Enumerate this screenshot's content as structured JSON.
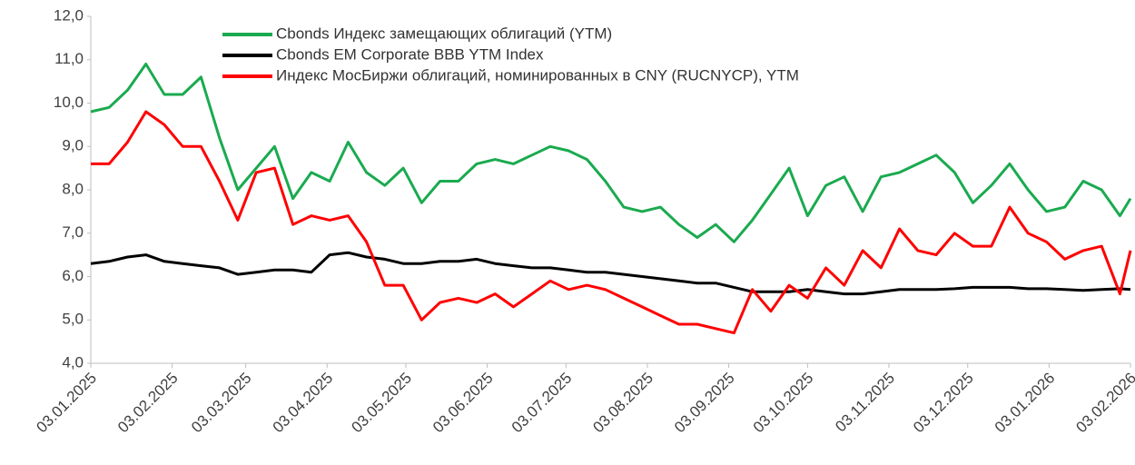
{
  "chart_data": {
    "type": "line",
    "x": [
      "03.01.2025",
      "10.01.2025",
      "17.01.2025",
      "24.01.2025",
      "31.01.2025",
      "07.02.2025",
      "14.02.2025",
      "21.02.2025",
      "28.02.2025",
      "07.03.2025",
      "14.03.2025",
      "21.03.2025",
      "28.03.2025",
      "04.04.2025",
      "11.04.2025",
      "18.04.2025",
      "25.04.2025",
      "02.05.2025",
      "09.05.2025",
      "16.05.2025",
      "23.05.2025",
      "30.05.2025",
      "06.06.2025",
      "13.06.2025",
      "20.06.2025",
      "27.06.2025",
      "04.07.2025",
      "11.07.2025",
      "18.07.2025",
      "25.07.2025",
      "01.08.2025",
      "08.08.2025",
      "15.08.2025",
      "22.08.2025",
      "29.08.2025",
      "05.09.2025",
      "12.09.2025",
      "19.09.2025",
      "26.09.2025",
      "03.10.2025",
      "10.10.2025",
      "17.10.2025",
      "24.10.2025",
      "31.10.2025",
      "07.11.2025",
      "14.11.2025",
      "21.11.2025",
      "28.11.2025",
      "05.12.2025",
      "12.12.2025",
      "19.12.2025",
      "26.12.2025",
      "02.01.2026",
      "09.01.2026",
      "16.01.2026",
      "23.01.2026",
      "30.01.2026",
      "03.02.2026"
    ],
    "series": [
      {
        "name": "Cbonds Индекс замещающих облигаций (YTM)",
        "color": "#1aaa4f",
        "values": [
          9.8,
          9.9,
          10.3,
          10.9,
          10.2,
          10.2,
          10.6,
          9.2,
          8.0,
          8.5,
          9.0,
          7.8,
          8.4,
          8.2,
          9.1,
          8.4,
          8.1,
          8.5,
          7.7,
          8.2,
          8.2,
          8.6,
          8.7,
          8.6,
          8.8,
          9.0,
          8.9,
          8.7,
          8.2,
          7.6,
          7.5,
          7.6,
          7.2,
          6.9,
          7.2,
          6.8,
          7.3,
          7.9,
          8.5,
          7.4,
          8.1,
          8.3,
          7.5,
          8.3,
          8.4,
          8.6,
          8.8,
          8.4,
          7.7,
          8.1,
          8.6,
          8.0,
          7.5,
          7.6,
          8.2,
          8.0,
          7.4,
          7.8
        ]
      },
      {
        "name": "Cbonds EM Corporate BBB YTM Index",
        "color": "#000000",
        "values": [
          6.3,
          6.35,
          6.45,
          6.5,
          6.35,
          6.3,
          6.25,
          6.2,
          6.05,
          6.1,
          6.15,
          6.15,
          6.1,
          6.5,
          6.55,
          6.45,
          6.4,
          6.3,
          6.3,
          6.35,
          6.35,
          6.4,
          6.3,
          6.25,
          6.2,
          6.2,
          6.15,
          6.1,
          6.1,
          6.05,
          6.0,
          5.95,
          5.9,
          5.85,
          5.85,
          5.75,
          5.65,
          5.65,
          5.65,
          5.7,
          5.65,
          5.6,
          5.6,
          5.65,
          5.7,
          5.7,
          5.7,
          5.72,
          5.75,
          5.75,
          5.75,
          5.72,
          5.72,
          5.7,
          5.68,
          5.7,
          5.72,
          5.7
        ]
      },
      {
        "name": "Индекс МосБиржи облигаций, номинированных в CNY (RUCNYCP), YTM",
        "color": "#ff0000",
        "values": [
          8.6,
          8.6,
          9.1,
          9.8,
          9.5,
          9.0,
          9.0,
          8.2,
          7.3,
          8.4,
          8.5,
          7.2,
          7.4,
          7.3,
          7.4,
          6.8,
          5.8,
          5.8,
          5.0,
          5.4,
          5.5,
          5.4,
          5.6,
          5.3,
          5.6,
          5.9,
          5.7,
          5.8,
          5.7,
          5.5,
          5.3,
          5.1,
          4.9,
          4.9,
          4.8,
          4.7,
          5.7,
          5.2,
          5.8,
          5.5,
          6.2,
          5.8,
          6.6,
          6.2,
          7.1,
          6.6,
          6.5,
          7.0,
          6.7,
          6.7,
          7.6,
          7.0,
          6.8,
          6.4,
          6.6,
          6.7,
          5.6,
          6.6
        ]
      }
    ],
    "xlim": [
      "03.01.2025",
      "03.02.2026"
    ],
    "xticks": [
      "03.01.2025",
      "03.02.2025",
      "03.03.2025",
      "03.04.2025",
      "03.05.2025",
      "03.06.2025",
      "03.07.2025",
      "03.08.2025",
      "03.09.2025",
      "03.10.2025",
      "03.11.2025",
      "03.12.2025",
      "03.01.2026",
      "03.02.2026"
    ],
    "ylim": [
      4,
      12
    ],
    "yticks": [
      {
        "value": 4,
        "label": "4,0"
      },
      {
        "value": 5,
        "label": "5,0"
      },
      {
        "value": 6,
        "label": "6,0"
      },
      {
        "value": 7,
        "label": "7,0"
      },
      {
        "value": 8,
        "label": "8,0"
      },
      {
        "value": 9,
        "label": "9,0"
      },
      {
        "value": 10,
        "label": "10,0"
      },
      {
        "value": 11,
        "label": "11,0"
      },
      {
        "value": 12,
        "label": "12,0"
      }
    ],
    "grid": false
  }
}
